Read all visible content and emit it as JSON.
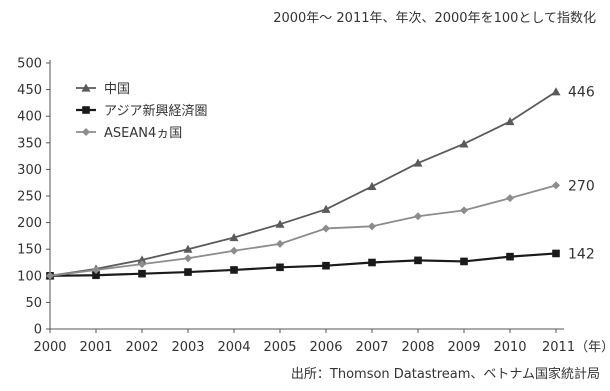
{
  "chart_data": {
    "type": "line",
    "title": "",
    "subtitle": "2000年〜 2011年、年次、2000年を100として指数化",
    "source": "出所：Thomson Datastream、ベトナム国家統計局",
    "xlabel": "",
    "ylabel": "",
    "x": [
      "2000",
      "2001",
      "2002",
      "2003",
      "2004",
      "2005",
      "2006",
      "2007",
      "2008",
      "2009",
      "2010",
      "2011"
    ],
    "x_tick_labels": [
      "2000",
      "2001",
      "2002",
      "2003",
      "2004",
      "2005",
      "2006",
      "2007",
      "2008",
      "2009",
      "2010",
      "2011（年）"
    ],
    "ylim": [
      0,
      500
    ],
    "yticks": [
      "0",
      "50",
      "100",
      "150",
      "200",
      "250",
      "300",
      "350",
      "400",
      "450",
      "500"
    ],
    "grid": false,
    "legend_position": "top-left",
    "series": [
      {
        "name": "中国",
        "color": "#5a5a5a",
        "marker": "triangle",
        "values": [
          100,
          113,
          130,
          150,
          172,
          197,
          225,
          268,
          312,
          348,
          390,
          446
        ],
        "end_label": "446"
      },
      {
        "name": "アジア新興経済圏",
        "color": "#1a1a1a",
        "marker": "square",
        "values": [
          100,
          101,
          104,
          107,
          111,
          116,
          119,
          125,
          129,
          127,
          136,
          142
        ],
        "end_label": "142"
      },
      {
        "name": "ASEAN4ヵ国",
        "color": "#8c8c8c",
        "marker": "diamond",
        "values": [
          100,
          111,
          122,
          133,
          147,
          160,
          189,
          193,
          212,
          223,
          246,
          270
        ],
        "end_label": "270"
      }
    ]
  }
}
